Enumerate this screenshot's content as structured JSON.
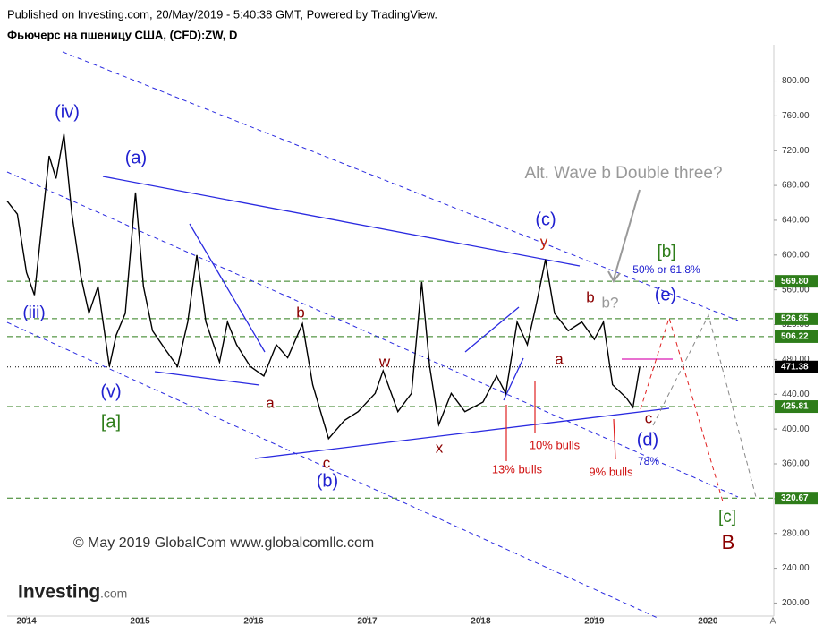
{
  "header": {
    "published": "Published on Investing.com, 20/May/2019 - 5:40:38 GMT, Powered by TradingView.",
    "logo_main": "Investing",
    "logo_suffix": ".com"
  },
  "chart_data": {
    "type": "line",
    "title": "Фьючерс на пшеницу США, (CFD):ZW, D",
    "series": [
      {
        "name": "ZW",
        "color": "#000000",
        "x": [
          2013.83,
          2013.92,
          2014.0,
          2014.07,
          2014.12,
          2014.2,
          2014.26,
          2014.33,
          2014.4,
          2014.48,
          2014.55,
          2014.63,
          2014.73,
          2014.79,
          2014.87,
          2014.96,
          2015.03,
          2015.11,
          2015.22,
          2015.33,
          2015.42,
          2015.5,
          2015.58,
          2015.7,
          2015.77,
          2015.85,
          2015.97,
          2016.09,
          2016.2,
          2016.3,
          2016.43,
          2016.52,
          2016.66,
          2016.8,
          2016.92,
          2017.07,
          2017.14,
          2017.27,
          2017.39,
          2017.48,
          2017.55,
          2017.63,
          2017.74,
          2017.86,
          2018.02,
          2018.14,
          2018.22,
          2018.32,
          2018.41,
          2018.49,
          2018.57,
          2018.65,
          2018.77,
          2018.89,
          2019.0,
          2019.08,
          2019.16,
          2019.28,
          2019.34,
          2019.4
        ],
        "values": [
          662,
          647,
          580,
          554,
          616,
          714,
          688,
          739,
          647,
          575,
          533,
          564,
          472,
          508,
          533,
          672,
          564,
          513,
          492,
          472,
          523,
          600,
          523,
          477,
          523,
          497,
          472,
          461,
          497,
          482,
          521,
          451,
          389,
          410,
          420,
          441,
          467,
          420,
          441,
          569,
          472,
          405,
          441,
          420,
          431,
          461,
          441,
          523,
          497,
          544,
          595,
          533,
          513,
          523,
          503,
          523,
          451,
          436,
          425,
          472
        ]
      }
    ],
    "xlim": [
      2013.83,
      2020.58
    ],
    "xticks": [
      2014,
      2015,
      2016,
      2017,
      2018,
      2019,
      2020
    ],
    "ylim": [
      185,
      852
    ],
    "yticks": [
      {
        "value": 200,
        "label": "200.00"
      },
      {
        "value": 240,
        "label": "240.00"
      },
      {
        "value": 280,
        "label": "280.00"
      },
      {
        "value": 320,
        "label": "320.00"
      },
      {
        "value": 360,
        "label": "360.00"
      },
      {
        "value": 400,
        "label": "400.00"
      },
      {
        "value": 440,
        "label": "440.00"
      },
      {
        "value": 480,
        "label": "480.00"
      },
      {
        "value": 520,
        "label": "520.00"
      },
      {
        "value": 560,
        "label": "560.00"
      },
      {
        "value": 600,
        "label": "600.00"
      },
      {
        "value": 640,
        "label": "640.00"
      },
      {
        "value": 680,
        "label": "680.00"
      },
      {
        "value": 720,
        "label": "720.00"
      },
      {
        "value": 760,
        "label": "760.00"
      },
      {
        "value": 800,
        "label": "800.00"
      }
    ],
    "axis_button": "A",
    "levels": [
      {
        "value": 569.8,
        "label": "569.80",
        "color": "#2e7d1a"
      },
      {
        "value": 526.85,
        "label": "526.85",
        "color": "#2e7d1a"
      },
      {
        "value": 506.22,
        "label": "506.22",
        "color": "#2e7d1a"
      },
      {
        "value": 425.81,
        "label": "425.81",
        "color": "#2e7d1a"
      },
      {
        "value": 320.67,
        "label": "320.67",
        "color": "#2e7d1a"
      },
      {
        "value": 471.38,
        "label": "471.38",
        "color": "#000000"
      }
    ],
    "annotations": [
      {
        "text": "(iv)",
        "color": "#2020d0"
      },
      {
        "text": "(a)",
        "color": "#2020d0"
      },
      {
        "text": "(iii)",
        "color": "#2020d0"
      },
      {
        "text": "(v)",
        "color": "#2020d0"
      },
      {
        "text": "[a]",
        "color": "#2e7d1a"
      },
      {
        "text": "b",
        "color": "#8b0000"
      },
      {
        "text": "a",
        "color": "#8b0000"
      },
      {
        "text": "c",
        "color": "#8b0000"
      },
      {
        "text": "(b)",
        "color": "#2020d0"
      },
      {
        "text": "w",
        "color": "#8b0000"
      },
      {
        "text": "x",
        "color": "#8b0000"
      },
      {
        "text": "(c)",
        "color": "#2020d0"
      },
      {
        "text": "y",
        "color": "#c0200a"
      },
      {
        "text": "b",
        "color": "#8b0000"
      },
      {
        "text": "b?",
        "color": "#999999"
      },
      {
        "text": "a",
        "color": "#8b0000"
      },
      {
        "text": "c",
        "color": "#8b0000"
      },
      {
        "text": "(d)",
        "color": "#2020d0"
      },
      {
        "text": "78%",
        "color": "#2020d0"
      },
      {
        "text": "13% bulls",
        "color": "#d01010"
      },
      {
        "text": "10% bulls",
        "color": "#d01010"
      },
      {
        "text": "9% bulls",
        "color": "#d01010"
      },
      {
        "text": "(e)",
        "color": "#2020d0"
      },
      {
        "text": "[b]",
        "color": "#2e7d1a"
      },
      {
        "text": "50% or 61.8%",
        "color": "#2020d0"
      },
      {
        "text": "Alt. Wave b Double three?",
        "color": "#999999"
      },
      {
        "text": "[c]",
        "color": "#2e7d1a"
      },
      {
        "text": "B",
        "color": "#8b0000"
      },
      {
        "text": "© May 2019 GlobalCom www.globalcomllc.com",
        "color": "#333333"
      }
    ]
  }
}
